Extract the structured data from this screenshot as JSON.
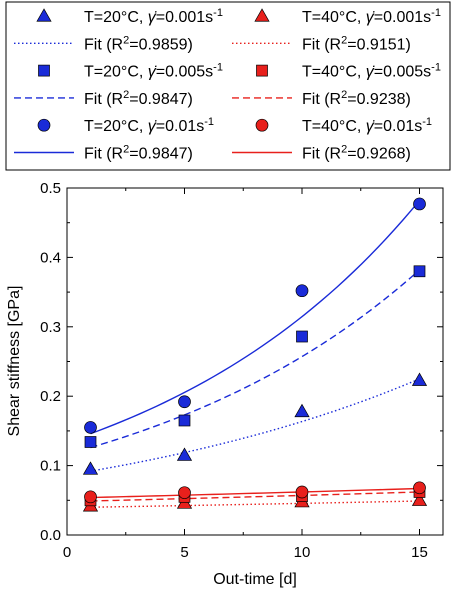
{
  "chart_data": {
    "type": "scatter",
    "title": "",
    "xlabel": "Out-time [d]",
    "ylabel": "Shear stiffness [GPa]",
    "xlim": [
      0,
      16
    ],
    "ylim": [
      0,
      0.5
    ],
    "xticks": [
      "0",
      "5",
      "10",
      "15"
    ],
    "yticks": [
      "0.0",
      "0.1",
      "0.2",
      "0.3",
      "0.4",
      "0.5"
    ],
    "x": [
      1,
      5,
      10,
      15
    ],
    "grid": false,
    "legend_position": "top",
    "colors": {
      "blue": "#1a2bd8",
      "red": "#e8201c"
    },
    "series": [
      {
        "name": "T=20°C, γ̇=0.001s⁻¹",
        "marker": "triangle",
        "color": "#1a2bd8",
        "values": [
          0.095,
          0.115,
          0.178,
          0.223
        ]
      },
      {
        "name": "T=40°C, γ̇=0.001s⁻¹",
        "marker": "triangle",
        "color": "#e8201c",
        "values": [
          0.042,
          0.046,
          0.048,
          0.05
        ]
      },
      {
        "name": "T=20°C, γ̇=0.005s⁻¹",
        "marker": "square",
        "color": "#1a2bd8",
        "values": [
          0.134,
          0.165,
          0.286,
          0.38
        ]
      },
      {
        "name": "T=40°C, γ̇=0.005s⁻¹",
        "marker": "square",
        "color": "#e8201c",
        "values": [
          0.05,
          0.055,
          0.056,
          0.062
        ]
      },
      {
        "name": "T=20°C, γ̇=0.01s⁻¹",
        "marker": "circle",
        "color": "#1a2bd8",
        "values": [
          0.155,
          0.192,
          0.352,
          0.477
        ]
      },
      {
        "name": "T=40°C, γ̇=0.01s⁻¹",
        "marker": "circle",
        "color": "#e8201c",
        "values": [
          0.055,
          0.061,
          0.062,
          0.068
        ]
      }
    ],
    "fits": [
      {
        "name": "Fit (R²=0.9859)",
        "style": "dotted",
        "color": "#1a2bd8",
        "x": [
          1,
          15
        ],
        "y": [
          0.092,
          0.225
        ]
      },
      {
        "name": "Fit (R²=0.9151)",
        "style": "dotted",
        "color": "#e8201c",
        "x": [
          1,
          15
        ],
        "y": [
          0.04,
          0.049
        ]
      },
      {
        "name": "Fit (R²=0.9847)",
        "style": "dashed",
        "color": "#1a2bd8",
        "x": [
          1,
          15
        ],
        "y": [
          0.126,
          0.382
        ]
      },
      {
        "name": "Fit (R²=0.9238)",
        "style": "dashed",
        "color": "#e8201c",
        "x": [
          1,
          15
        ],
        "y": [
          0.049,
          0.062
        ]
      },
      {
        "name": "Fit (R²=0.9847)",
        "style": "solid",
        "color": "#1a2bd8",
        "x": [
          1,
          15
        ],
        "y": [
          0.146,
          0.482
        ]
      },
      {
        "name": "Fit (R²=0.9268)",
        "style": "solid",
        "color": "#e8201c",
        "x": [
          1,
          15
        ],
        "y": [
          0.054,
          0.067
        ]
      }
    ]
  },
  "legend": {
    "rows": [
      {
        "left": {
          "kind": "marker",
          "marker": "triangle",
          "color": "#1a2bd8",
          "pre": "T=20°C, ",
          "rate": "=0.001s",
          "sup": "-1"
        },
        "right": {
          "kind": "marker",
          "marker": "triangle",
          "color": "#e8201c",
          "pre": "T=40°C, ",
          "rate": "=0.001s",
          "sup": "-1"
        }
      },
      {
        "left": {
          "kind": "line",
          "style": "dotted",
          "color": "#1a2bd8",
          "pre": "Fit (R",
          "sup": "2",
          "post": "=0.9859)"
        },
        "right": {
          "kind": "line",
          "style": "dotted",
          "color": "#e8201c",
          "pre": "Fit (R",
          "sup": "2",
          "post": "=0.9151)"
        }
      },
      {
        "left": {
          "kind": "marker",
          "marker": "square",
          "color": "#1a2bd8",
          "pre": "T=20°C, ",
          "rate": "=0.005s",
          "sup": "-1"
        },
        "right": {
          "kind": "marker",
          "marker": "square",
          "color": "#e8201c",
          "pre": "T=40°C, ",
          "rate": "=0.005s",
          "sup": "-1"
        }
      },
      {
        "left": {
          "kind": "line",
          "style": "dashed",
          "color": "#1a2bd8",
          "pre": "Fit (R",
          "sup": "2",
          "post": "=0.9847)"
        },
        "right": {
          "kind": "line",
          "style": "dashed",
          "color": "#e8201c",
          "pre": "Fit (R",
          "sup": "2",
          "post": "=0.9238)"
        }
      },
      {
        "left": {
          "kind": "marker",
          "marker": "circle",
          "color": "#1a2bd8",
          "pre": "T=20°C, ",
          "rate": "=0.01s",
          "sup": "-1"
        },
        "right": {
          "kind": "marker",
          "marker": "circle",
          "color": "#e8201c",
          "pre": "T=40°C, ",
          "rate": "=0.01s",
          "sup": "-1"
        }
      },
      {
        "left": {
          "kind": "line",
          "style": "solid",
          "color": "#1a2bd8",
          "pre": "Fit (R",
          "sup": "2",
          "post": "=0.9847)"
        },
        "right": {
          "kind": "line",
          "style": "solid",
          "color": "#e8201c",
          "pre": "Fit (R",
          "sup": "2",
          "post": "=0.9268)"
        }
      }
    ]
  }
}
